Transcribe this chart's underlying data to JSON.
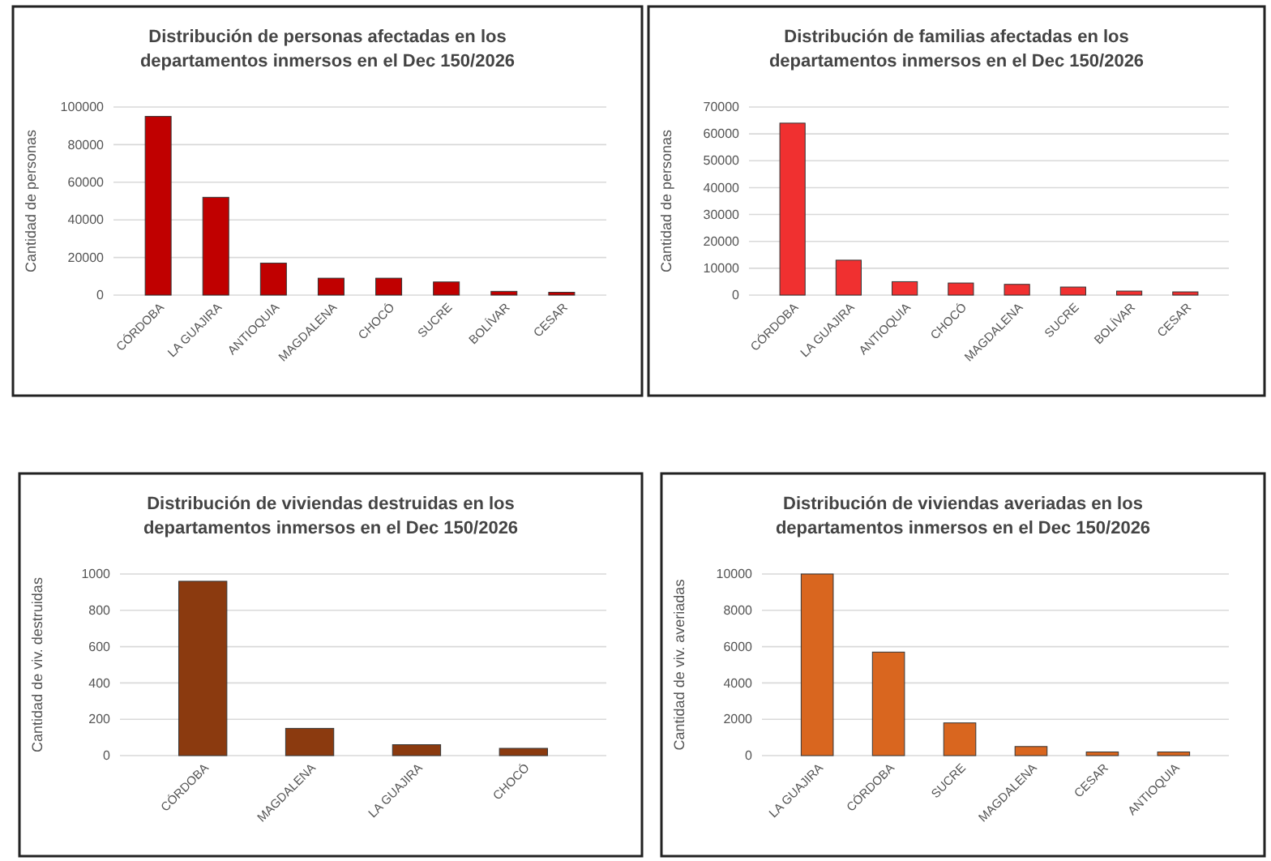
{
  "chart_data": [
    {
      "type": "bar",
      "title": "Distribución de personas afectadas en los departamentos inmersos en el Dec 150/2026",
      "ylabel": "Cantidad de personas",
      "categories": [
        "CÓRDOBA",
        "LA GUAJIRA",
        "ANTIOQUIA",
        "MAGDALENA",
        "CHOCÓ",
        "SUCRE",
        "BOLÍVAR",
        "CESAR"
      ],
      "values": [
        95000,
        52000,
        17000,
        9000,
        9000,
        7000,
        2000,
        1500
      ],
      "color": "#c00000",
      "ylim": [
        0,
        100000
      ],
      "yticks": [
        0,
        20000,
        40000,
        60000,
        80000,
        100000
      ],
      "grid": "y"
    },
    {
      "type": "bar",
      "title": "Distribución de familias afectadas en los departamentos inmersos en el Dec 150/2026",
      "ylabel": "Cantidad de personas",
      "categories": [
        "CÓRDOBA",
        "LA GUAJIRA",
        "ANTIOQUIA",
        "CHOCÓ",
        "MAGDALENA",
        "SUCRE",
        "BOLÍVAR",
        "CESAR"
      ],
      "values": [
        64000,
        13000,
        5000,
        4500,
        4000,
        3000,
        1500,
        1200
      ],
      "color": "#f03030",
      "ylim": [
        0,
        70000
      ],
      "yticks": [
        0,
        10000,
        20000,
        30000,
        40000,
        50000,
        60000,
        70000
      ],
      "grid": "y"
    },
    {
      "type": "bar",
      "title": "Distribución de viviendas destruidas en los departamentos inmersos en el Dec 150/2026",
      "ylabel": "Cantidad de viv. destruidas",
      "categories": [
        "CÓRDOBA",
        "MAGDALENA",
        "LA GUAJIRA",
        "CHOCÓ"
      ],
      "values": [
        960,
        150,
        60,
        40
      ],
      "color": "#8b3a0f",
      "ylim": [
        0,
        1000
      ],
      "yticks": [
        0,
        200,
        400,
        600,
        800,
        1000
      ],
      "grid": "y"
    },
    {
      "type": "bar",
      "title": "Distribución de viviendas averiadas en los departamentos inmersos en el Dec 150/2026",
      "ylabel": "Cantidad de viv. averiadas",
      "categories": [
        "LA GUAJIRA",
        "CÓRDOBA",
        "SUCRE",
        "MAGDALENA",
        "CESAR",
        "ANTIOQUIA"
      ],
      "values": [
        10000,
        5700,
        1800,
        500,
        200,
        200
      ],
      "color": "#d9661f",
      "ylim": [
        0,
        10000
      ],
      "yticks": [
        0,
        2000,
        4000,
        6000,
        8000,
        10000
      ],
      "grid": "y"
    }
  ]
}
